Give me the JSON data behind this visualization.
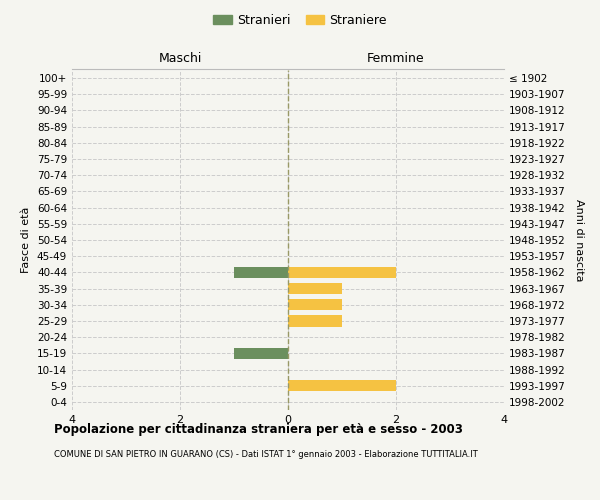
{
  "age_groups": [
    "0-4",
    "5-9",
    "10-14",
    "15-19",
    "20-24",
    "25-29",
    "30-34",
    "35-39",
    "40-44",
    "45-49",
    "50-54",
    "55-59",
    "60-64",
    "65-69",
    "70-74",
    "75-79",
    "80-84",
    "85-89",
    "90-94",
    "95-99",
    "100+"
  ],
  "birth_years": [
    "1998-2002",
    "1993-1997",
    "1988-1992",
    "1983-1987",
    "1978-1982",
    "1973-1977",
    "1968-1972",
    "1963-1967",
    "1958-1962",
    "1953-1957",
    "1948-1952",
    "1943-1947",
    "1938-1942",
    "1933-1937",
    "1928-1932",
    "1923-1927",
    "1918-1922",
    "1913-1917",
    "1908-1912",
    "1903-1907",
    "≤ 1902"
  ],
  "maschi_stranieri": [
    0,
    0,
    0,
    1,
    0,
    0,
    0,
    0,
    1,
    0,
    0,
    0,
    0,
    0,
    0,
    0,
    0,
    0,
    0,
    0,
    0
  ],
  "femmine_straniere": [
    0,
    2,
    0,
    0,
    0,
    1,
    1,
    1,
    2,
    0,
    0,
    0,
    0,
    0,
    0,
    0,
    0,
    0,
    0,
    0,
    0
  ],
  "color_maschi": "#6b8f5e",
  "color_femmine": "#f5c242",
  "xlim": 4,
  "title": "Popolazione per cittadinanza straniera per età e sesso - 2003",
  "subtitle": "COMUNE DI SAN PIETRO IN GUARANO (CS) - Dati ISTAT 1° gennaio 2003 - Elaborazione TUTTITALIA.IT",
  "ylabel_left": "Fasce di età",
  "ylabel_right": "Anni di nascita",
  "legend_maschi": "Stranieri",
  "legend_femmine": "Straniere",
  "header_maschi": "Maschi",
  "header_femmine": "Femmine",
  "bg_color": "#f5f5f0",
  "bar_height": 0.7
}
